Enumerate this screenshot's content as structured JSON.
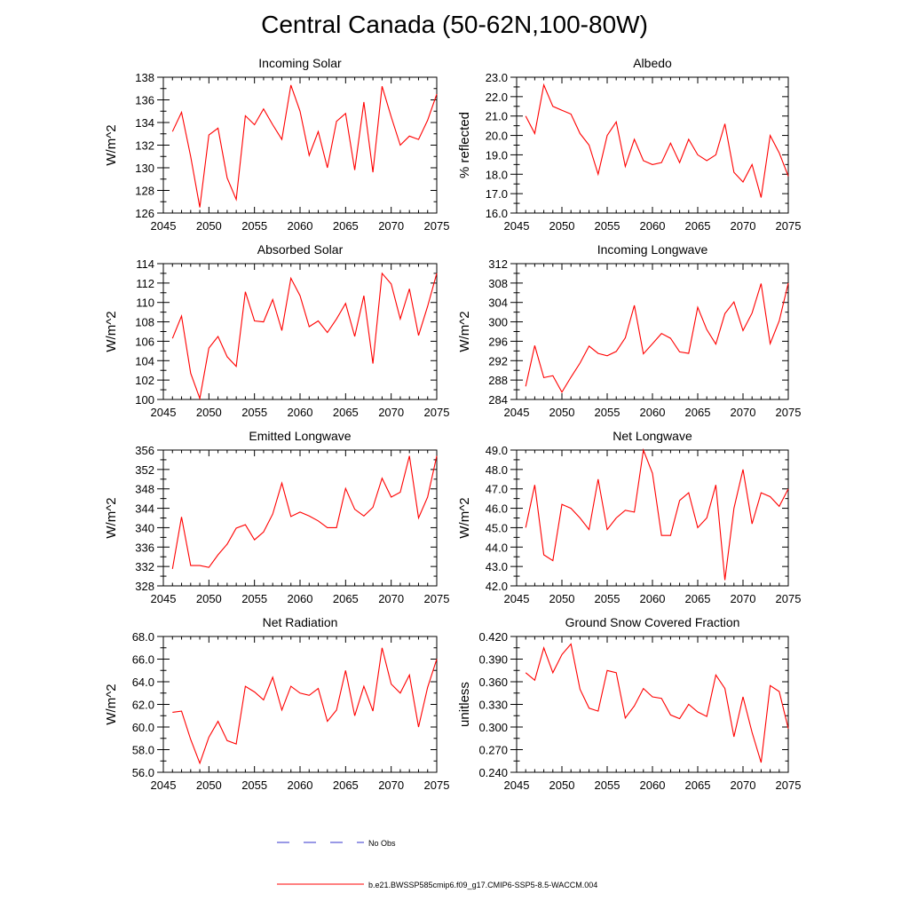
{
  "title": "Central Canada (50-62N,100-80W)",
  "colors": {
    "model_line": "#ff0000",
    "obs_line": "#3333cc",
    "axis": "#000000"
  },
  "legend": {
    "obs_label": "No Obs",
    "model_label": "b.e21.BWSSP585cmip6.f09_g17.CMIP6-SSP5-8.5-WACCM.004"
  },
  "chart_data": [
    {
      "type": "line",
      "title": "Incoming Solar",
      "ylabel": "W/m^2",
      "xlim": [
        2045,
        2075
      ],
      "xticks": [
        2045,
        2050,
        2055,
        2060,
        2065,
        2070,
        2075
      ],
      "ylim": [
        126,
        138
      ],
      "yticks": [
        126,
        128,
        130,
        132,
        134,
        136,
        138
      ],
      "ydecimals": 0,
      "x": [
        2046,
        2047,
        2048,
        2049,
        2050,
        2051,
        2052,
        2053,
        2054,
        2055,
        2056,
        2057,
        2058,
        2059,
        2060,
        2061,
        2062,
        2063,
        2064,
        2065,
        2066,
        2067,
        2068,
        2069,
        2070,
        2071,
        2072,
        2073,
        2074,
        2075
      ],
      "series": [
        {
          "name": "b.e21.BWSSP585cmip6.f09_g17.CMIP6-SSP5-8.5-WACCM.004",
          "values": [
            133.2,
            134.9,
            131.0,
            126.5,
            132.9,
            133.5,
            129.1,
            127.2,
            134.6,
            133.8,
            135.2,
            133.8,
            132.5,
            137.3,
            135.0,
            131.1,
            133.2,
            130.0,
            134.1,
            134.8,
            129.8,
            135.8,
            129.6,
            137.2,
            134.5,
            132.0,
            132.8,
            132.5,
            134.2,
            136.5
          ]
        }
      ]
    },
    {
      "type": "line",
      "title": "Albedo",
      "ylabel": "% reflected",
      "xlim": [
        2045,
        2075
      ],
      "xticks": [
        2045,
        2050,
        2055,
        2060,
        2065,
        2070,
        2075
      ],
      "ylim": [
        16.0,
        23.0
      ],
      "yticks": [
        16.0,
        17.0,
        18.0,
        19.0,
        20.0,
        21.0,
        22.0,
        23.0
      ],
      "ydecimals": 1,
      "x": [
        2046,
        2047,
        2048,
        2049,
        2050,
        2051,
        2052,
        2053,
        2054,
        2055,
        2056,
        2057,
        2058,
        2059,
        2060,
        2061,
        2062,
        2063,
        2064,
        2065,
        2066,
        2067,
        2068,
        2069,
        2070,
        2071,
        2072,
        2073,
        2074,
        2075
      ],
      "series": [
        {
          "name": "b.e21.BWSSP585cmip6.f09_g17.CMIP6-SSP5-8.5-WACCM.004",
          "values": [
            21.0,
            20.1,
            22.6,
            21.5,
            21.3,
            21.1,
            20.1,
            19.5,
            18.0,
            20.0,
            20.7,
            18.4,
            19.8,
            18.7,
            18.5,
            18.6,
            19.6,
            18.6,
            19.8,
            19.0,
            18.7,
            19.0,
            20.6,
            18.1,
            17.6,
            18.5,
            16.8,
            20.0,
            19.1,
            17.9
          ]
        }
      ]
    },
    {
      "type": "line",
      "title": "Absorbed Solar",
      "ylabel": "W/m^2",
      "xlim": [
        2045,
        2075
      ],
      "xticks": [
        2045,
        2050,
        2055,
        2060,
        2065,
        2070,
        2075
      ],
      "ylim": [
        100,
        114
      ],
      "yticks": [
        100,
        102,
        104,
        106,
        108,
        110,
        112,
        114
      ],
      "ydecimals": 0,
      "x": [
        2046,
        2047,
        2048,
        2049,
        2050,
        2051,
        2052,
        2053,
        2054,
        2055,
        2056,
        2057,
        2058,
        2059,
        2060,
        2061,
        2062,
        2063,
        2064,
        2065,
        2066,
        2067,
        2068,
        2069,
        2070,
        2071,
        2072,
        2073,
        2074,
        2075
      ],
      "series": [
        {
          "name": "b.e21.BWSSP585cmip6.f09_g17.CMIP6-SSP5-8.5-WACCM.004",
          "values": [
            106.3,
            108.6,
            102.7,
            100.1,
            105.3,
            106.5,
            104.4,
            103.4,
            111.1,
            108.1,
            108.0,
            110.3,
            107.1,
            112.5,
            110.7,
            107.5,
            108.1,
            106.9,
            108.3,
            109.9,
            106.5,
            110.7,
            103.7,
            113.0,
            111.9,
            108.3,
            111.4,
            106.6,
            109.6,
            113.0
          ]
        }
      ]
    },
    {
      "type": "line",
      "title": "Incoming Longwave",
      "ylabel": "W/m^2",
      "xlim": [
        2045,
        2075
      ],
      "xticks": [
        2045,
        2050,
        2055,
        2060,
        2065,
        2070,
        2075
      ],
      "ylim": [
        284,
        312
      ],
      "yticks": [
        284,
        288,
        292,
        296,
        300,
        304,
        308,
        312
      ],
      "ydecimals": 0,
      "x": [
        2046,
        2047,
        2048,
        2049,
        2050,
        2051,
        2052,
        2053,
        2054,
        2055,
        2056,
        2057,
        2058,
        2059,
        2060,
        2061,
        2062,
        2063,
        2064,
        2065,
        2066,
        2067,
        2068,
        2069,
        2070,
        2071,
        2072,
        2073,
        2074,
        2075
      ],
      "series": [
        {
          "name": "b.e21.BWSSP585cmip6.f09_g17.CMIP6-SSP5-8.5-WACCM.004",
          "values": [
            286.7,
            295.1,
            288.5,
            288.9,
            285.5,
            288.6,
            291.5,
            295.0,
            293.5,
            293.0,
            293.9,
            296.7,
            303.4,
            293.4,
            295.5,
            297.6,
            296.6,
            293.8,
            293.5,
            303.0,
            298.4,
            295.4,
            301.7,
            304.1,
            298.2,
            301.8,
            307.9,
            295.5,
            300.2,
            308.0
          ]
        }
      ]
    },
    {
      "type": "line",
      "title": "Emitted Longwave",
      "ylabel": "W/m^2",
      "xlim": [
        2045,
        2075
      ],
      "xticks": [
        2045,
        2050,
        2055,
        2060,
        2065,
        2070,
        2075
      ],
      "ylim": [
        328,
        356
      ],
      "yticks": [
        328,
        332,
        336,
        340,
        344,
        348,
        352,
        356
      ],
      "ydecimals": 0,
      "x": [
        2046,
        2047,
        2048,
        2049,
        2050,
        2051,
        2052,
        2053,
        2054,
        2055,
        2056,
        2057,
        2058,
        2059,
        2060,
        2061,
        2062,
        2063,
        2064,
        2065,
        2066,
        2067,
        2068,
        2069,
        2070,
        2071,
        2072,
        2073,
        2074,
        2075
      ],
      "series": [
        {
          "name": "b.e21.BWSSP585cmip6.f09_g17.CMIP6-SSP5-8.5-WACCM.004",
          "values": [
            331.5,
            342.2,
            332.2,
            332.2,
            331.8,
            334.4,
            336.6,
            339.9,
            340.6,
            337.5,
            339.1,
            342.8,
            349.2,
            342.3,
            343.2,
            342.4,
            341.4,
            340.0,
            340.0,
            348.1,
            343.8,
            342.4,
            344.2,
            350.2,
            346.3,
            347.3,
            354.8,
            342.0,
            346.3,
            354.8
          ]
        }
      ]
    },
    {
      "type": "line",
      "title": "Net Longwave",
      "ylabel": "W/m^2",
      "xlim": [
        2045,
        2075
      ],
      "xticks": [
        2045,
        2050,
        2055,
        2060,
        2065,
        2070,
        2075
      ],
      "ylim": [
        42.0,
        49.0
      ],
      "yticks": [
        42.0,
        43.0,
        44.0,
        45.0,
        46.0,
        47.0,
        48.0,
        49.0
      ],
      "ydecimals": 1,
      "x": [
        2046,
        2047,
        2048,
        2049,
        2050,
        2051,
        2052,
        2053,
        2054,
        2055,
        2056,
        2057,
        2058,
        2059,
        2060,
        2061,
        2062,
        2063,
        2064,
        2065,
        2066,
        2067,
        2068,
        2069,
        2070,
        2071,
        2072,
        2073,
        2074,
        2075
      ],
      "series": [
        {
          "name": "b.e21.BWSSP585cmip6.f09_g17.CMIP6-SSP5-8.5-WACCM.004",
          "values": [
            45.0,
            47.2,
            43.6,
            43.3,
            46.2,
            46.0,
            45.5,
            44.9,
            47.5,
            44.9,
            45.5,
            45.9,
            45.8,
            49.0,
            47.8,
            44.6,
            44.6,
            46.4,
            46.8,
            45.0,
            45.5,
            47.2,
            42.3,
            46.0,
            48.0,
            45.2,
            46.8,
            46.6,
            46.1,
            47.0
          ]
        }
      ]
    },
    {
      "type": "line",
      "title": "Net Radiation",
      "ylabel": "W/m^2",
      "xlim": [
        2045,
        2075
      ],
      "xticks": [
        2045,
        2050,
        2055,
        2060,
        2065,
        2070,
        2075
      ],
      "ylim": [
        56.0,
        68.0
      ],
      "yticks": [
        56.0,
        58.0,
        60.0,
        62.0,
        64.0,
        66.0,
        68.0
      ],
      "ydecimals": 1,
      "x": [
        2046,
        2047,
        2048,
        2049,
        2050,
        2051,
        2052,
        2053,
        2054,
        2055,
        2056,
        2057,
        2058,
        2059,
        2060,
        2061,
        2062,
        2063,
        2064,
        2065,
        2066,
        2067,
        2068,
        2069,
        2070,
        2071,
        2072,
        2073,
        2074,
        2075
      ],
      "series": [
        {
          "name": "b.e21.BWSSP585cmip6.f09_g17.CMIP6-SSP5-8.5-WACCM.004",
          "values": [
            61.3,
            61.4,
            58.9,
            56.8,
            59.1,
            60.5,
            58.8,
            58.5,
            63.6,
            63.1,
            62.4,
            64.4,
            61.5,
            63.6,
            63.0,
            62.8,
            63.4,
            60.5,
            61.5,
            65.0,
            61.0,
            63.6,
            61.4,
            67.0,
            63.8,
            63.0,
            64.6,
            60.0,
            63.5,
            66.0
          ]
        }
      ]
    },
    {
      "type": "line",
      "title": "Ground Snow Covered Fraction",
      "ylabel": "unitless",
      "xlim": [
        2045,
        2075
      ],
      "xticks": [
        2045,
        2050,
        2055,
        2060,
        2065,
        2070,
        2075
      ],
      "ylim": [
        0.24,
        0.42
      ],
      "yticks": [
        0.24,
        0.27,
        0.3,
        0.33,
        0.36,
        0.39,
        0.42
      ],
      "ydecimals": 3,
      "x": [
        2046,
        2047,
        2048,
        2049,
        2050,
        2051,
        2052,
        2053,
        2054,
        2055,
        2056,
        2057,
        2058,
        2059,
        2060,
        2061,
        2062,
        2063,
        2064,
        2065,
        2066,
        2067,
        2068,
        2069,
        2070,
        2071,
        2072,
        2073,
        2074,
        2075
      ],
      "series": [
        {
          "name": "b.e21.BWSSP585cmip6.f09_g17.CMIP6-SSP5-8.5-WACCM.004",
          "values": [
            0.372,
            0.362,
            0.405,
            0.372,
            0.396,
            0.41,
            0.35,
            0.325,
            0.321,
            0.375,
            0.372,
            0.312,
            0.328,
            0.351,
            0.34,
            0.338,
            0.316,
            0.311,
            0.33,
            0.32,
            0.314,
            0.369,
            0.351,
            0.287,
            0.34,
            0.293,
            0.253,
            0.355,
            0.347,
            0.298
          ]
        }
      ]
    }
  ]
}
